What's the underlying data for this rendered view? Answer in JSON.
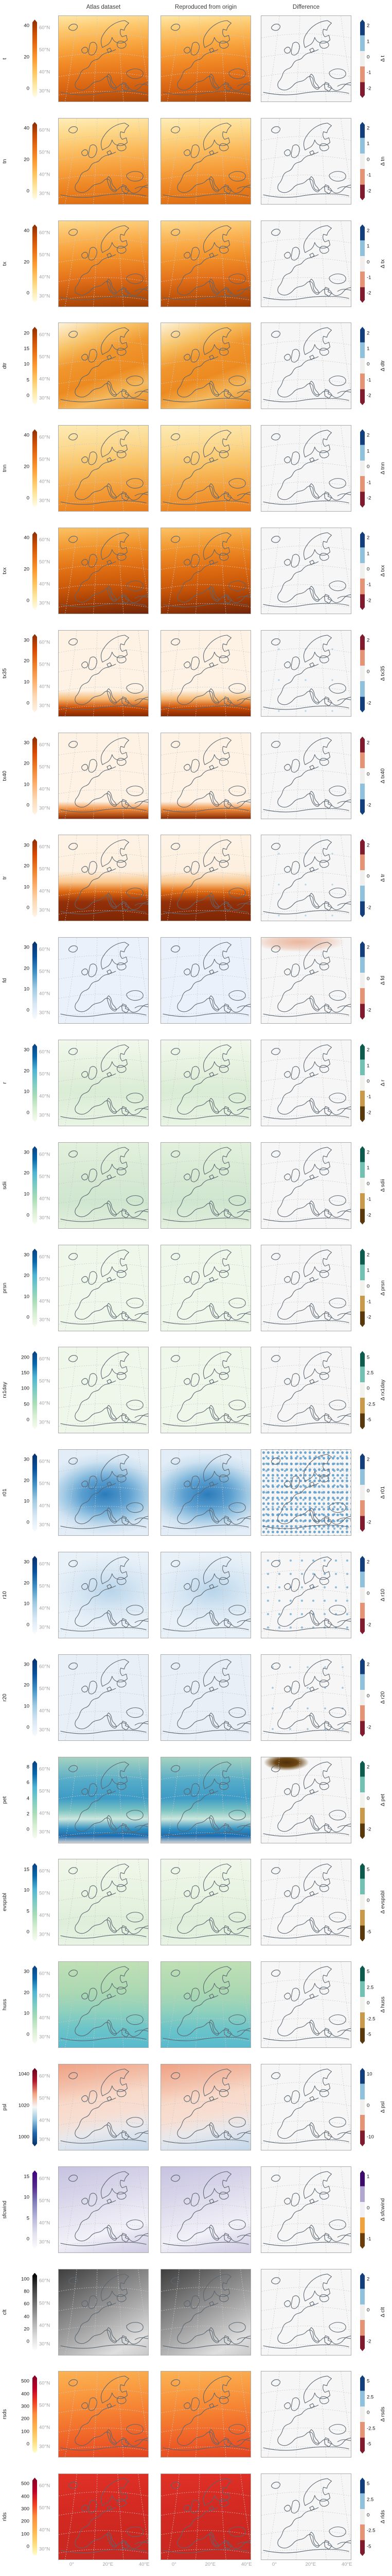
{
  "header": {
    "columns": [
      "Atlas dataset",
      "Reproduced from origin",
      "Difference"
    ]
  },
  "axes": {
    "lat_labels": [
      "60°N",
      "50°N",
      "40°N",
      "30°N"
    ],
    "lon_labels": [
      "0°",
      "20°E",
      "40°E"
    ]
  },
  "colormaps": {
    "sequential": {
      "ylorbr": [
        "#fffdeb",
        "#fee7a0",
        "#fec45f",
        "#fd9a2e",
        "#ec7014",
        "#cc4c02",
        "#8c2d04"
      ],
      "oranges": [
        "#fff3e6",
        "#fdd9b4",
        "#fdae6b",
        "#f07f2a",
        "#d94801",
        "#8c2d04"
      ],
      "blues": [
        "#f7fbff",
        "#d8e7f5",
        "#9ecae1",
        "#4292c6",
        "#08519c",
        "#08306b"
      ],
      "gnbu": [
        "#f7fcf0",
        "#d8efd3",
        "#a8ddb5",
        "#7bccc4",
        "#4eb3d3",
        "#0868ac",
        "#084081"
      ],
      "psl_div": [
        "#053061",
        "#2166ac",
        "#92c5de",
        "#f7f7f7",
        "#f4a582",
        "#b2182b",
        "#67001f"
      ],
      "purples": [
        "#fcfbfd",
        "#e2e1ef",
        "#b6b5d8",
        "#807dba",
        "#54278f",
        "#3f007d"
      ],
      "greys": [
        "#ffffff",
        "#d9d9d9",
        "#a8a8a8",
        "#737373",
        "#404040",
        "#000000"
      ],
      "ylorrd": [
        "#ffffcc",
        "#fed976",
        "#feb24c",
        "#fd8d3c",
        "#f03b20",
        "#bd0026",
        "#800026"
      ]
    },
    "diverging": {
      "burd": [
        "#123f7c",
        "#8fc0dc",
        "#f0efed",
        "#e49475",
        "#801b2e"
      ],
      "rdbu": [
        "#801b2e",
        "#e49475",
        "#f0efed",
        "#8fc0dc",
        "#123f7c"
      ],
      "brbg": [
        "#0d5a4e",
        "#72c0b1",
        "#f1f1ee",
        "#c9994b",
        "#59380b"
      ],
      "puor": [
        "#3c0a6b",
        "#b0a6d0",
        "#f2f0f4",
        "#f0a23c",
        "#6b3d0a"
      ]
    }
  },
  "diff_styles": {
    "plain": "#f6f6f6",
    "dots_heavy": "radial-gradient(circle, rgba(95,158,204,0.9) 2.2px, transparent 2.8px) 0 0 / 9px 11px, radial-gradient(circle, rgba(95,158,204,0.75) 1.8px, transparent 2.4px) 4px 6px / 12px 14px, #f6f6f6",
    "dots_med": "radial-gradient(circle, rgba(120,175,212,0.8) 1.8px, transparent 2.4px) 2px 3px / 22px 26px, #f6f6f6",
    "dots_light": "radial-gradient(circle, rgba(130,180,215,0.7) 1.6px, transparent 2.2px) 5px 4px / 34px 40px, #f6f6f6",
    "dots_xlight": "radial-gradient(circle, rgba(140,190,220,0.6) 1.4px, transparent 2px) 8px 6px / 52px 60px, #f6f6f6",
    "warm_blob": "radial-gradient(120px 26px at 42% 5%, rgba(225,120,70,0.5) 0%, rgba(225,120,70,0.25) 50%, transparent 75%), #f6f6f6",
    "dark_blob": "radial-gradient(55px 20px at 28% 6%, #50300a 0%, #6b4513 40%, rgba(107,69,19,0.4) 65%, transparent 80%), #f6f6f6"
  },
  "rows": [
    {
      "var": "t",
      "left_ticks": [
        "40",
        "20",
        "0"
      ],
      "left_cmap": "ylorbr",
      "bg": "linear-gradient(175deg,#fee7a5 0%,#fdc86e 16%,#f9a943 34%,#f18a26 52%,#e4731a 68%,#d4600f 82%,#a8470a 100%)",
      "delta_label": "Δ t",
      "right_ticks": [
        "2",
        "1",
        "0",
        "-1",
        "-2"
      ],
      "right_cmap": "burd",
      "diff": "plain"
    },
    {
      "var": "tn",
      "left_ticks": [
        "40",
        "20",
        "0"
      ],
      "left_cmap": "ylorbr",
      "bg": "linear-gradient(175deg,#feedb8 0%,#fdd685 20%,#fbb95a 40%,#f59b38 60%,#ea7f1e 80%,#d96a10 100%)",
      "delta_label": "Δ tn",
      "right_ticks": [
        "2",
        "1",
        "0",
        "-1",
        "-2"
      ],
      "right_cmap": "burd",
      "diff": "plain"
    },
    {
      "var": "tx",
      "left_ticks": [
        "40",
        "20",
        "0"
      ],
      "left_cmap": "ylorbr",
      "bg": "linear-gradient(175deg,#fdd98c 0%,#faae4c 25%,#f18f28 45%,#e2701a 65%,#c2560c 82%,#9c3d05 100%)",
      "delta_label": "Δ tx",
      "right_ticks": [
        "2",
        "1",
        "0",
        "-1",
        "-2"
      ],
      "right_cmap": "burd",
      "diff": "plain"
    },
    {
      "var": "dtr",
      "left_ticks": [
        "20",
        "15",
        "10",
        "5",
        "0"
      ],
      "left_cmap": "ylorbr",
      "bg": "linear-gradient(160deg,#fdf3dc 0%,#f8c468 22%,#f0962d 40%,#ec8a20 60%,#f5b95c 78%,#e8821a 100%)",
      "delta_label": "Δ dtr",
      "right_ticks": [
        "2",
        "1",
        "0",
        "-1",
        "-2"
      ],
      "right_cmap": "burd",
      "diff": "plain"
    },
    {
      "var": "tnn",
      "left_ticks": [
        "40",
        "20",
        "0"
      ],
      "left_cmap": "ylorbr",
      "bg": "linear-gradient(175deg,#fdeab4 0%,#fcd98f 25%,#f9c468 45%,#f5a844 65%,#ef8f2a 85%,#e97c1c 100%)",
      "delta_label": "Δ tnn",
      "right_ticks": [
        "2",
        "1",
        "0",
        "-1",
        "-2"
      ],
      "right_cmap": "burd",
      "diff": "plain"
    },
    {
      "var": "txx",
      "left_ticks": [
        "40",
        "20",
        "0"
      ],
      "left_cmap": "ylorbr",
      "bg": "linear-gradient(175deg,#fbc264 0%,#f09129 25%,#df6d12 48%,#c65509 68%,#9e3a04 85%,#70260a 100%)",
      "delta_label": "Δ txx",
      "right_ticks": [
        "2",
        "1",
        "0",
        "-1",
        "-2"
      ],
      "right_cmap": "burd",
      "diff": "plain"
    },
    {
      "var": "tx35",
      "left_ticks": [
        "30",
        "20",
        "10",
        "0"
      ],
      "left_cmap": "oranges",
      "bg": "linear-gradient(180deg,#fdf2e4 0%,#fdf2e4 70%,#f5b873 80%,#cc4c02 90%,#842904 100%)",
      "delta_label": "Δ tx35",
      "right_ticks": [
        "2",
        "0",
        "-2"
      ],
      "right_cmap": "rdbu",
      "diff": "dots_xlight"
    },
    {
      "var": "tx40",
      "left_ticks": [
        "30",
        "20",
        "10",
        "0"
      ],
      "left_cmap": "oranges",
      "bg": "linear-gradient(180deg,#fdf2e4 0%,#fdf2e4 80%,#f08c3b 89%,#8c2d04 100%)",
      "delta_label": "Δ tx40",
      "right_ticks": [
        "2",
        "0",
        "-2"
      ],
      "right_cmap": "rdbu",
      "diff": "plain"
    },
    {
      "var": "tr",
      "left_ticks": [
        "30",
        "20",
        "10",
        "0"
      ],
      "left_cmap": "oranges",
      "bg": "linear-gradient(180deg,#fdf2e4 0%,#fdf0e0 42%,#f9c68c 55%,#e06a10 66%,#93300a 78%,#7f2704 100%)",
      "delta_label": "Δ tr",
      "right_ticks": [
        "2",
        "0",
        "-2"
      ],
      "right_cmap": "rdbu",
      "diff": "dots_xlight"
    },
    {
      "var": "fd",
      "left_ticks": [
        "30",
        "20",
        "10",
        "0"
      ],
      "left_cmap": "blues",
      "bg": "#ebf1fa",
      "delta_label": "Δ fd",
      "right_ticks": [
        "2",
        "0",
        "-2"
      ],
      "right_cmap": "burd",
      "diff": "warm_blob"
    },
    {
      "var": "r",
      "left_ticks": [
        "30",
        "20",
        "10",
        "0"
      ],
      "left_cmap": "gnbu",
      "bg": "linear-gradient(180deg,#f1f8ec 0%,#e3f0dc 40%,#d9ecd4 60%,#e9f4e4 100%)",
      "delta_label": "Δ r",
      "right_ticks": [
        "2",
        "1",
        "0",
        "-1",
        "-2"
      ],
      "right_cmap": "brbg",
      "diff": "plain"
    },
    {
      "var": "sdii",
      "left_ticks": [
        "30",
        "20",
        "10",
        "0"
      ],
      "left_cmap": "gnbu",
      "bg": "linear-gradient(180deg,#e2f0dc 0%,#d5e9d2 45%,#cfe6cf 70%,#e4f1de 100%)",
      "delta_label": "Δ sdii",
      "right_ticks": [
        "2",
        "1",
        "0",
        "-1",
        "-2"
      ],
      "right_cmap": "brbg",
      "diff": "plain"
    },
    {
      "var": "prsn",
      "left_ticks": [
        "30",
        "20",
        "10",
        "0"
      ],
      "left_cmap": "gnbu",
      "bg": "#eff7ea",
      "delta_label": "Δ prsn",
      "right_ticks": [
        "2",
        "1",
        "0",
        "-1",
        "-2"
      ],
      "right_cmap": "brbg",
      "diff": "plain"
    },
    {
      "var": "rx1day",
      "left_ticks": [
        "200",
        "150",
        "100",
        "50",
        "0"
      ],
      "left_cmap": "gnbu",
      "bg": "#eff6ea",
      "delta_label": "Δ rx1day",
      "right_ticks": [
        "5",
        "2.5",
        "0",
        "-2.5",
        "-5"
      ],
      "right_cmap": "brbg",
      "diff": "plain"
    },
    {
      "var": "r01",
      "left_ticks": [
        "30",
        "20",
        "10",
        "0"
      ],
      "left_cmap": "blues",
      "bg": "radial-gradient(130px 80px at 52% 52%,#2b7bba 0%,#5b9fd0 35%,#9ec8e4 60%,#cfe2f1 80%,#e2edf7 100%)",
      "delta_label": "Δ r01",
      "right_ticks": [
        "2",
        "0",
        "-2"
      ],
      "right_cmap": "burd",
      "diff": "dots_heavy"
    },
    {
      "var": "r10",
      "left_ticks": [
        "30",
        "20",
        "10",
        "0"
      ],
      "left_cmap": "blues",
      "bg": "radial-gradient(120px 70px at 58% 45%,#b7d4ea 0%,#d6e6f3 50%,#e9f1f8 100%)",
      "delta_label": "Δ r10",
      "right_ticks": [
        "2",
        "0",
        "-2"
      ],
      "right_cmap": "burd",
      "diff": "dots_med"
    },
    {
      "var": "r20",
      "left_ticks": [
        "30",
        "20",
        "10",
        "0"
      ],
      "left_cmap": "blues",
      "bg": "#e9eff7",
      "delta_label": "Δ r20",
      "right_ticks": [
        "2",
        "0",
        "-2"
      ],
      "right_cmap": "burd",
      "diff": "dots_light"
    },
    {
      "var": "pet",
      "left_ticks": [
        "8",
        "6",
        "4",
        "2",
        "0"
      ],
      "left_cmap": "gnbu",
      "bg": "linear-gradient(180deg,#a5d2c0 0%,#54abc8 28%,#3d9bc6 48%,#7cc4c2 62%,#cde8dd 72%,#2f8fc0 84%,#1b6db2 92%,#d4d4d4 100%)",
      "delta_label": "Δ pet",
      "right_ticks": [
        "2",
        "0",
        "-2"
      ],
      "right_cmap": "brbg",
      "diff": "dark_blob"
    },
    {
      "var": "evspsbl",
      "left_ticks": [
        "15",
        "10",
        "5",
        "0"
      ],
      "left_cmap": "gnbu",
      "bg": "linear-gradient(180deg,#f0f7ea 0%,#e6f2e0 50%,#ddeeda 75%,#e9f4e4 100%)",
      "delta_label": "Δ evspsbl",
      "right_ticks": [
        "5",
        "0",
        "-5"
      ],
      "right_cmap": "brbg",
      "diff": "plain"
    },
    {
      "var": "huss",
      "left_ticks": [
        "30",
        "20",
        "10",
        "0"
      ],
      "left_cmap": "gnbu",
      "bg": "linear-gradient(180deg,#c0e0b5 0%,#abd8b2 35%,#8fd0bd 58%,#6cc4c8 78%,#57bacd 100%)",
      "delta_label": "Δ huss",
      "right_ticks": [
        "5",
        "2.5",
        "0",
        "-2.5",
        "-5"
      ],
      "right_cmap": "brbg",
      "diff": "plain"
    },
    {
      "var": "psl",
      "left_ticks": [
        "1040",
        "1020",
        "1000"
      ],
      "left_cmap": "psl_div",
      "bg": "linear-gradient(170deg,#efa184 0%,#f3bda6 22%,#f8d9c9 40%,#f7ded2 58%,#e8e8ec 74%,#d4e0ed 88%,#c2d6e9 100%)",
      "delta_label": "Δ psl",
      "right_ticks": [
        "10",
        "0",
        "-10"
      ],
      "right_cmap": "burd",
      "diff": "plain"
    },
    {
      "var": "sfcwind",
      "left_ticks": [
        "15",
        "10",
        "5",
        "0"
      ],
      "left_cmap": "purples",
      "bg": "linear-gradient(165deg,#c6c2e0 0%,#d6d3e9 28%,#e6e4f1 52%,#f2f1f8 72%,#dcd9ec 88%,#cfcce3 100%)",
      "delta_label": "Δ sfcwind",
      "right_ticks": [
        "1",
        "0",
        "-1"
      ],
      "right_cmap": "puor",
      "diff": "plain"
    },
    {
      "var": "clt",
      "left_ticks": [
        "100",
        "80",
        "60",
        "40",
        "20",
        "0"
      ],
      "left_cmap": "greys",
      "bg": "linear-gradient(150deg,#3f3f3f 0%,#5e5e5e 18%,#828282 36%,#9e9e9e 52%,#bdbdbd 68%,#dedede 84%,#c8c8c8 100%)",
      "delta_label": "Δ clt",
      "right_ticks": [
        "2",
        "0",
        "-2"
      ],
      "right_cmap": "burd",
      "diff": "plain"
    },
    {
      "var": "rsds",
      "left_ticks": [
        "500",
        "400",
        "300",
        "200",
        "100",
        "0"
      ],
      "left_cmap": "ylorrd",
      "bg": "linear-gradient(175deg,#fbb254 0%,#f99a40 25%,#f57f31 50%,#ef6228 75%,#e4431f 100%)",
      "delta_label": "Δ rsds",
      "right_ticks": [
        "5",
        "2.5",
        "0",
        "-2.5",
        "-5"
      ],
      "right_cmap": "burd",
      "diff": "plain"
    },
    {
      "var": "rlds",
      "left_ticks": [
        "500",
        "400",
        "300",
        "200",
        "100",
        "0"
      ],
      "left_cmap": "ylorrd",
      "bg": "linear-gradient(175deg,#e03126 0%,#d42a22 40%,#cc2820 70%,#c52a22 100%)",
      "delta_label": "Δ rlds",
      "right_ticks": [
        "5",
        "2.5",
        "0",
        "-2.5",
        "-5"
      ],
      "right_cmap": "burd",
      "diff": "plain"
    }
  ],
  "chart_data": {
    "type": "heatmap",
    "title": "",
    "columns": [
      "Atlas dataset",
      "Reproduced from origin",
      "Difference"
    ],
    "region": "Europe",
    "lat_ticks": [
      "60°N",
      "50°N",
      "40°N",
      "30°N"
    ],
    "lon_ticks": [
      "0°",
      "20°E",
      "40°E"
    ],
    "rows": [
      {
        "variable": "t",
        "colorbar_ticks": [
          0,
          20,
          40
        ],
        "diff_colorbar_ticks": [
          -2,
          -1,
          0,
          1,
          2
        ]
      },
      {
        "variable": "tn",
        "colorbar_ticks": [
          0,
          20,
          40
        ],
        "diff_colorbar_ticks": [
          -2,
          -1,
          0,
          1,
          2
        ]
      },
      {
        "variable": "tx",
        "colorbar_ticks": [
          0,
          20,
          40
        ],
        "diff_colorbar_ticks": [
          -2,
          -1,
          0,
          1,
          2
        ]
      },
      {
        "variable": "dtr",
        "colorbar_ticks": [
          0,
          5,
          10,
          15,
          20
        ],
        "diff_colorbar_ticks": [
          -2,
          -1,
          0,
          1,
          2
        ]
      },
      {
        "variable": "tnn",
        "colorbar_ticks": [
          0,
          20,
          40
        ],
        "diff_colorbar_ticks": [
          -2,
          -1,
          0,
          1,
          2
        ]
      },
      {
        "variable": "txx",
        "colorbar_ticks": [
          0,
          20,
          40
        ],
        "diff_colorbar_ticks": [
          -2,
          -1,
          0,
          1,
          2
        ]
      },
      {
        "variable": "tx35",
        "colorbar_ticks": [
          0,
          10,
          20,
          30
        ],
        "diff_colorbar_ticks": [
          -2,
          0,
          2
        ]
      },
      {
        "variable": "tx40",
        "colorbar_ticks": [
          0,
          10,
          20,
          30
        ],
        "diff_colorbar_ticks": [
          -2,
          0,
          2
        ]
      },
      {
        "variable": "tr",
        "colorbar_ticks": [
          0,
          10,
          20,
          30
        ],
        "diff_colorbar_ticks": [
          -2,
          0,
          2
        ]
      },
      {
        "variable": "fd",
        "colorbar_ticks": [
          0,
          10,
          20,
          30
        ],
        "diff_colorbar_ticks": [
          -2,
          0,
          2
        ]
      },
      {
        "variable": "r",
        "colorbar_ticks": [
          0,
          10,
          20,
          30
        ],
        "diff_colorbar_ticks": [
          -2,
          -1,
          0,
          1,
          2
        ]
      },
      {
        "variable": "sdii",
        "colorbar_ticks": [
          0,
          10,
          20,
          30
        ],
        "diff_colorbar_ticks": [
          -2,
          -1,
          0,
          1,
          2
        ]
      },
      {
        "variable": "prsn",
        "colorbar_ticks": [
          0,
          10,
          20,
          30
        ],
        "diff_colorbar_ticks": [
          -2,
          -1,
          0,
          1,
          2
        ]
      },
      {
        "variable": "rx1day",
        "colorbar_ticks": [
          0,
          50,
          100,
          150,
          200
        ],
        "diff_colorbar_ticks": [
          -5,
          -2.5,
          0,
          2.5,
          5
        ]
      },
      {
        "variable": "r01",
        "colorbar_ticks": [
          0,
          10,
          20,
          30
        ],
        "diff_colorbar_ticks": [
          -2,
          0,
          2
        ]
      },
      {
        "variable": "r10",
        "colorbar_ticks": [
          0,
          10,
          20,
          30
        ],
        "diff_colorbar_ticks": [
          -2,
          0,
          2
        ]
      },
      {
        "variable": "r20",
        "colorbar_ticks": [
          0,
          10,
          20,
          30
        ],
        "diff_colorbar_ticks": [
          -2,
          0,
          2
        ]
      },
      {
        "variable": "pet",
        "colorbar_ticks": [
          0,
          2,
          4,
          6,
          8
        ],
        "diff_colorbar_ticks": [
          -2,
          0,
          2
        ]
      },
      {
        "variable": "evspsbl",
        "colorbar_ticks": [
          0,
          5,
          10,
          15
        ],
        "diff_colorbar_ticks": [
          -5,
          0,
          5
        ]
      },
      {
        "variable": "huss",
        "colorbar_ticks": [
          0,
          10,
          20,
          30
        ],
        "diff_colorbar_ticks": [
          -5,
          -2.5,
          0,
          2.5,
          5
        ]
      },
      {
        "variable": "psl",
        "colorbar_ticks": [
          1000,
          1020,
          1040
        ],
        "diff_colorbar_ticks": [
          -10,
          0,
          10
        ]
      },
      {
        "variable": "sfcwind",
        "colorbar_ticks": [
          0,
          5,
          10,
          15
        ],
        "diff_colorbar_ticks": [
          -1,
          0,
          1
        ]
      },
      {
        "variable": "clt",
        "colorbar_ticks": [
          0,
          20,
          40,
          60,
          80,
          100
        ],
        "diff_colorbar_ticks": [
          -2,
          0,
          2
        ]
      },
      {
        "variable": "rsds",
        "colorbar_ticks": [
          0,
          100,
          200,
          300,
          400,
          500
        ],
        "diff_colorbar_ticks": [
          -5,
          -2.5,
          0,
          2.5,
          5
        ]
      },
      {
        "variable": "rlds",
        "colorbar_ticks": [
          0,
          100,
          200,
          300,
          400,
          500
        ],
        "diff_colorbar_ticks": [
          -5,
          -2.5,
          0,
          2.5,
          5
        ]
      }
    ]
  }
}
